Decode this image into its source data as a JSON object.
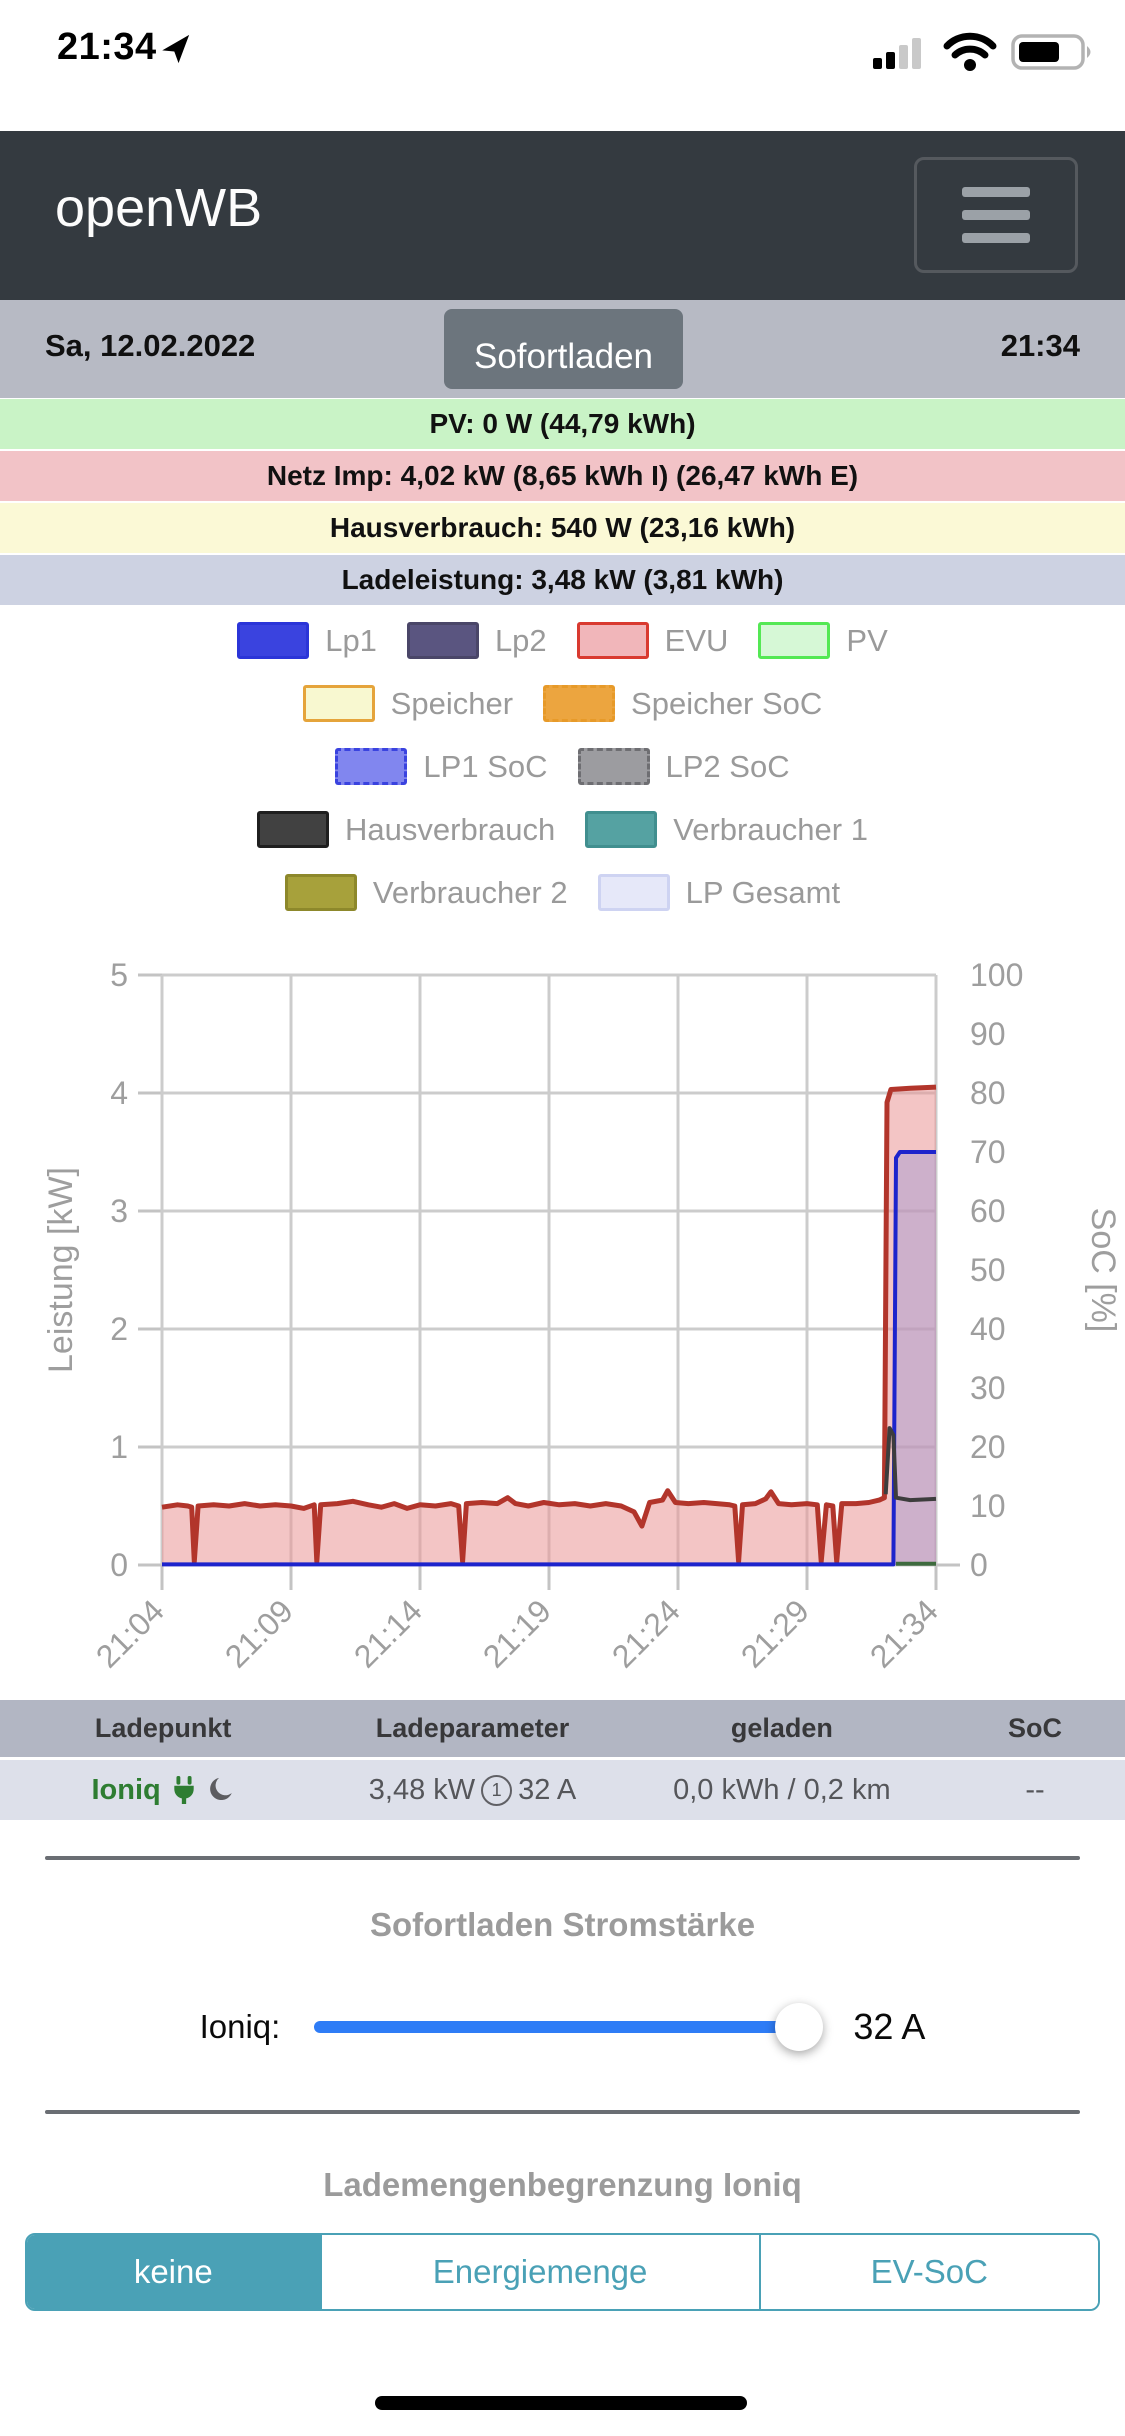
{
  "status_bar": {
    "time": "21:34"
  },
  "header": {
    "app_title": "openWB"
  },
  "datebar": {
    "date": "Sa, 12.02.2022",
    "mode_button": "Sofortladen",
    "time": "21:34"
  },
  "strips": [
    {
      "name": "pv",
      "text": "PV: 0 W (44,79 kWh)",
      "bg": "#c9f3c6"
    },
    {
      "name": "netz",
      "text": "Netz Imp: 4,02 kW (8,65 kWh I) (26,47 kWh E)",
      "bg": "#f2c3c7"
    },
    {
      "name": "hausverbrauch",
      "text": "Hausverbrauch: 540 W (23,16 kWh)",
      "bg": "#fbf9d6"
    },
    {
      "name": "ladeleistung",
      "text": "Ladeleistung: 3,48 kW (3,81 kWh)",
      "bg": "#cdd2e2"
    }
  ],
  "legend": {
    "rows": [
      [
        {
          "label": "Lp1",
          "fill": "#3a43df",
          "border": "#2b35d8",
          "dashed": false
        },
        {
          "label": "Lp2",
          "fill": "#5a5580",
          "border": "#4a4668",
          "dashed": false
        },
        {
          "label": "EVU",
          "fill": "#f1b6ba",
          "border": "#d93a30",
          "dashed": false
        },
        {
          "label": "PV",
          "fill": "#d6f8d6",
          "border": "#54e854",
          "dashed": false
        }
      ],
      [
        {
          "label": "Speicher",
          "fill": "#f8f8d0",
          "border": "#e5a43b",
          "dashed": false
        },
        {
          "label": "Speicher SoC",
          "fill": "#eca53f",
          "border": "#e79a29",
          "dashed": true
        }
      ],
      [
        {
          "label": "LP1 SoC",
          "fill": "#8186ef",
          "border": "#3a43df",
          "dashed": true
        },
        {
          "label": "LP2 SoC",
          "fill": "#9c9ca0",
          "border": "#6e6e72",
          "dashed": true
        }
      ],
      [
        {
          "label": "Hausverbrauch",
          "fill": "#414141",
          "border": "#1f1f1f",
          "dashed": false
        },
        {
          "label": "Verbraucher 1",
          "fill": "#55a2a2",
          "border": "#418f8f",
          "dashed": false
        }
      ],
      [
        {
          "label": "Verbraucher 2",
          "fill": "#a7a13b",
          "border": "#8d882b",
          "dashed": false
        },
        {
          "label": "LP Gesamt",
          "fill": "#e6e8f9",
          "border": "#ced3f2",
          "dashed": false
        }
      ]
    ]
  },
  "chart_data": {
    "type": "line",
    "ylabel": "Leistung [kW]",
    "y2label": "SoC [%]",
    "ylim": [
      0,
      5
    ],
    "y2lim": [
      0,
      100
    ],
    "yticks_left": [
      0,
      1,
      2,
      3,
      4,
      5
    ],
    "yticks_right": [
      0,
      10,
      20,
      30,
      40,
      50,
      60,
      70,
      80,
      90,
      100
    ],
    "xticks": [
      "21:04",
      "21:09",
      "21:14",
      "21:19",
      "21:24",
      "21:29",
      "21:34"
    ],
    "x_minutes_span": 30,
    "grid": true,
    "grid_color": "#cccccc",
    "axis_text_color": "#9e9e9e",
    "series": [
      {
        "name": "EVU",
        "color": "#b2352b",
        "width": 5,
        "fill": "rgba(233,150,150,0.55)",
        "points": [
          [
            0,
            0.49
          ],
          [
            0.6,
            0.51
          ],
          [
            1.0,
            0.5
          ],
          [
            1.15,
            0.49
          ],
          [
            1.25,
            0.03
          ],
          [
            1.4,
            0.5
          ],
          [
            2,
            0.51
          ],
          [
            2.6,
            0.5
          ],
          [
            3.2,
            0.52
          ],
          [
            3.8,
            0.5
          ],
          [
            4.4,
            0.51
          ],
          [
            5,
            0.5
          ],
          [
            5.5,
            0.48
          ],
          [
            5.9,
            0.51
          ],
          [
            6.0,
            0.03
          ],
          [
            6.15,
            0.51
          ],
          [
            6.8,
            0.52
          ],
          [
            7.4,
            0.54
          ],
          [
            8,
            0.51
          ],
          [
            8.5,
            0.49
          ],
          [
            9,
            0.52
          ],
          [
            9.5,
            0.48
          ],
          [
            10,
            0.51
          ],
          [
            10.6,
            0.5
          ],
          [
            11.2,
            0.52
          ],
          [
            11.5,
            0.5
          ],
          [
            11.65,
            0.03
          ],
          [
            11.8,
            0.52
          ],
          [
            12.4,
            0.53
          ],
          [
            13,
            0.52
          ],
          [
            13.4,
            0.57
          ],
          [
            13.7,
            0.52
          ],
          [
            14.2,
            0.5
          ],
          [
            14.8,
            0.53
          ],
          [
            15.4,
            0.51
          ],
          [
            16,
            0.52
          ],
          [
            16.6,
            0.5
          ],
          [
            17.2,
            0.52
          ],
          [
            17.8,
            0.5
          ],
          [
            18.3,
            0.45
          ],
          [
            18.6,
            0.33
          ],
          [
            18.9,
            0.53
          ],
          [
            19.4,
            0.55
          ],
          [
            19.6,
            0.63
          ],
          [
            19.9,
            0.53
          ],
          [
            20.4,
            0.52
          ],
          [
            21,
            0.53
          ],
          [
            21.5,
            0.52
          ],
          [
            22,
            0.51
          ],
          [
            22.2,
            0.5
          ],
          [
            22.35,
            0.03
          ],
          [
            22.5,
            0.51
          ],
          [
            23,
            0.52
          ],
          [
            23.4,
            0.56
          ],
          [
            23.6,
            0.62
          ],
          [
            23.9,
            0.52
          ],
          [
            24.4,
            0.51
          ],
          [
            25,
            0.52
          ],
          [
            25.4,
            0.51
          ],
          [
            25.55,
            0.03
          ],
          [
            25.75,
            0.51
          ],
          [
            26.0,
            0.5
          ],
          [
            26.15,
            0.03
          ],
          [
            26.35,
            0.52
          ],
          [
            26.9,
            0.52
          ],
          [
            27.4,
            0.53
          ],
          [
            27.8,
            0.55
          ],
          [
            28.0,
            0.57
          ],
          [
            28.1,
            3.92
          ],
          [
            28.25,
            4.03
          ],
          [
            29,
            4.04
          ],
          [
            30,
            4.05
          ]
        ]
      },
      {
        "name": "Lp1",
        "color": "#1d24cc",
        "width": 4,
        "fill": "rgba(160,150,210,0.45)",
        "points": [
          [
            0,
            0.005
          ],
          [
            28.35,
            0.005
          ],
          [
            28.45,
            3.45
          ],
          [
            28.6,
            3.5
          ],
          [
            30,
            3.5
          ]
        ]
      },
      {
        "name": "PV",
        "color": "#3e6b3e",
        "width": 4,
        "fill": null,
        "points": [
          [
            28.45,
            0.01
          ],
          [
            30,
            0.01
          ]
        ]
      },
      {
        "name": "Hausverbrauch",
        "color": "#3d3d3d",
        "width": 4,
        "fill": null,
        "points": [
          [
            28.05,
            0.6
          ],
          [
            28.2,
            1.16
          ],
          [
            28.35,
            1.1
          ],
          [
            28.45,
            0.57
          ],
          [
            29,
            0.55
          ],
          [
            30,
            0.56
          ]
        ]
      }
    ]
  },
  "table": {
    "headers": [
      "Ladepunkt",
      "Ladeparameter",
      "geladen",
      "SoC"
    ],
    "row": {
      "name": "Ioniq",
      "name_color": "#2e7d32",
      "icons": [
        "plug-icon",
        "moon-icon"
      ],
      "power": "3,48 kW",
      "phases": "1",
      "current": "32 A",
      "charged": "0,0 kWh / 0,2 km",
      "soc": "--"
    }
  },
  "slider_section": {
    "title": "Sofortladen Stromstärke",
    "label": "Ioniq:",
    "value_label": "32 A",
    "percent": 96,
    "track_color": "#2e7cf6"
  },
  "limit_section": {
    "title": "Lademengenbegrenzung Ioniq",
    "accent": "#4aa1b6",
    "options": [
      {
        "label": "keine",
        "active": true
      },
      {
        "label": "Energiemenge",
        "active": false
      },
      {
        "label": "EV-SoC",
        "active": false
      }
    ]
  }
}
